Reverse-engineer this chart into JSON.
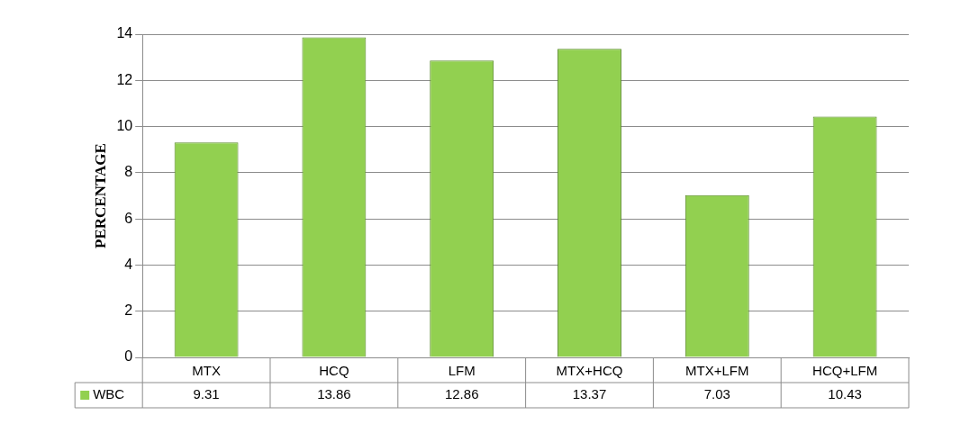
{
  "chart_data": {
    "type": "bar",
    "ylabel": "PERCENTAGE",
    "categories": [
      "MTX",
      "HCQ",
      "LFM",
      "MTX+HCQ",
      "MTX+LFM",
      "HCQ+LFM"
    ],
    "series": [
      {
        "name": "WBC",
        "color": "#92d050",
        "values": [
          9.31,
          13.86,
          12.86,
          13.37,
          7.03,
          10.43
        ]
      }
    ],
    "ylim": [
      0,
      14
    ],
    "yticks": [
      0,
      2,
      4,
      6,
      8,
      10,
      12,
      14
    ],
    "grid": "y",
    "legend": "bottom",
    "data_labels": true
  }
}
